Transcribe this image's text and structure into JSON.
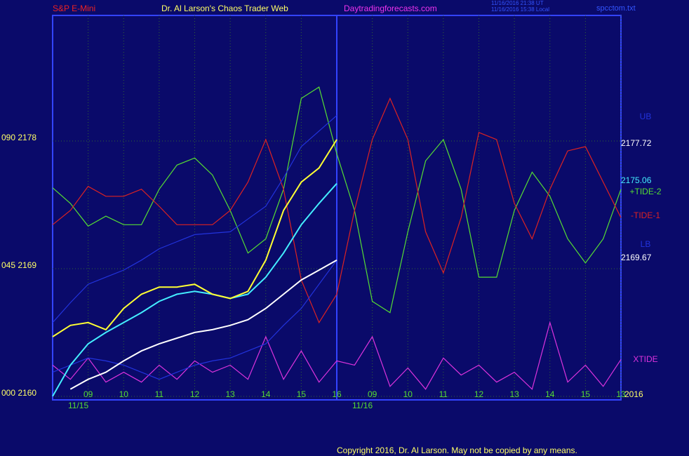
{
  "chart_data": {
    "type": "line",
    "header": {
      "left": "S&P E-Mini",
      "center": "Dr. Al Larson's Chaos Trader Web",
      "site": "Daytradingforecasts.com",
      "time_ut": "11/16/2016 21:38 UT",
      "time_local": "11/16/2016 15:38 Local",
      "file": "spcctom.txt"
    },
    "copyright": "Copyright 2016, Dr. Al Larson. May not be copied by any means.",
    "dates": [
      "11/15",
      "11/16"
    ],
    "right_labels": {
      "ub_value": "2177.72",
      "mid_value": "2175.06",
      "lb_value": "2169.67",
      "year": "2016"
    },
    "x": [
      0,
      0.5,
      1,
      1.5,
      2,
      2.5,
      3,
      3.5,
      4,
      4.5,
      5,
      5.5,
      6,
      6.5,
      7,
      7.5,
      8,
      8.5,
      9,
      9.5,
      10,
      10.5,
      11,
      11.5,
      12,
      12.5,
      13,
      13.5,
      14,
      14.5,
      15,
      15.5,
      16
    ],
    "xlim": [
      0,
      16
    ],
    "xticks": [
      {
        "value": 1,
        "label": "09"
      },
      {
        "value": 2,
        "label": "10"
      },
      {
        "value": 3,
        "label": "11"
      },
      {
        "value": 4,
        "label": "12"
      },
      {
        "value": 5,
        "label": "13"
      },
      {
        "value": 6,
        "label": "14"
      },
      {
        "value": 7,
        "label": "15"
      },
      {
        "value": 8,
        "label": "16"
      },
      {
        "value": 9,
        "label": "09"
      },
      {
        "value": 10,
        "label": "10"
      },
      {
        "value": 11,
        "label": "11"
      },
      {
        "value": 12,
        "label": "12"
      },
      {
        "value": 13,
        "label": "13"
      },
      {
        "value": 14,
        "label": "14"
      },
      {
        "value": 15,
        "label": "15"
      },
      {
        "value": 16,
        "label": "13"
      }
    ],
    "ylim": [
      2159.75,
      2186.85
    ],
    "yticks": [
      {
        "value": 2160,
        "label": "000  2160"
      },
      {
        "value": 2169,
        "label": "045  2169"
      },
      {
        "value": 2178,
        "label": "090  2178"
      }
    ],
    "now_x": 8,
    "grid": true,
    "series": [
      {
        "name": "+TIDE-2",
        "color": "#55dd33",
        "values": [
          2174.7,
          2173.6,
          2172.0,
          2172.7,
          2172.1,
          2172.1,
          2174.6,
          2176.3,
          2176.8,
          2175.6,
          2173.1,
          2170.1,
          2171.1,
          2174.6,
          2181.0,
          2181.8,
          2177.1,
          2173.1,
          2166.7,
          2165.9,
          2171.6,
          2176.6,
          2178.1,
          2174.6,
          2168.4,
          2168.4,
          2173.1,
          2175.8,
          2174.1,
          2171.1,
          2169.4,
          2171.1,
          2174.6
        ]
      },
      {
        "name": "-TIDE-1",
        "color": "#dd2222",
        "values": [
          2172.1,
          2173.1,
          2174.8,
          2174.1,
          2174.1,
          2174.6,
          2173.4,
          2172.1,
          2172.1,
          2172.1,
          2173.1,
          2175.1,
          2178.1,
          2174.6,
          2168.2,
          2165.2,
          2167.2,
          2173.1,
          2178.1,
          2181.0,
          2178.1,
          2171.6,
          2168.7,
          2172.6,
          2178.6,
          2178.1,
          2173.6,
          2171.1,
          2174.6,
          2177.3,
          2177.6,
          2175.1,
          2172.6
        ]
      },
      {
        "name": "XTIDE",
        "color": "#dd33dd",
        "values": [
          2162.2,
          2161.2,
          2162.7,
          2161.0,
          2161.7,
          2161.0,
          2162.2,
          2161.2,
          2162.5,
          2161.7,
          2162.2,
          2161.2,
          2164.2,
          2161.2,
          2163.2,
          2161.0,
          2162.5,
          2162.2,
          2164.2,
          2160.7,
          2162.0,
          2160.5,
          2162.7,
          2161.5,
          2162.2,
          2161.0,
          2161.7,
          2160.5,
          2165.2,
          2161.0,
          2162.2,
          2160.7,
          2162.6
        ]
      },
      {
        "name": "UB",
        "color": "#2233dd",
        "values": [
          2165.2,
          2166.6,
          2167.9,
          2168.4,
          2168.9,
          2169.6,
          2170.4,
          2170.9,
          2171.4,
          2171.5,
          2171.6,
          2172.5,
          2173.4,
          2175.4,
          2177.6,
          2178.7,
          2179.8,
          null,
          null,
          null,
          null,
          null,
          null,
          null,
          null,
          null,
          null,
          null,
          null,
          null,
          null,
          null,
          null
        ]
      },
      {
        "name": "LB",
        "color": "#2233dd",
        "values": [
          2161.7,
          2162.2,
          2162.7,
          2162.5,
          2162.2,
          2161.7,
          2161.2,
          2161.7,
          2162.2,
          2162.5,
          2162.7,
          2163.2,
          2163.7,
          2165.0,
          2166.2,
          2167.9,
          2169.6,
          null,
          null,
          null,
          null,
          null,
          null,
          null,
          null,
          null,
          null,
          null,
          null,
          null,
          null,
          null,
          null
        ]
      },
      {
        "color": "#44eeff",
        "values": [
          2160.0,
          2162.2,
          2163.7,
          2164.5,
          2165.2,
          2165.9,
          2166.7,
          2167.2,
          2167.4,
          2167.2,
          2166.9,
          2167.2,
          2168.4,
          2170.1,
          2172.1,
          2173.6,
          2175.0,
          null,
          null,
          null,
          null,
          null,
          null,
          null,
          null,
          null,
          null,
          null,
          null,
          null,
          null,
          null,
          null
        ]
      },
      {
        "color": "#ffffff",
        "values": [
          null,
          2160.5,
          2161.2,
          2161.7,
          2162.5,
          2163.2,
          2163.7,
          2164.1,
          2164.5,
          2164.7,
          2165.0,
          2165.4,
          2166.2,
          2167.2,
          2168.2,
          2168.9,
          2169.6,
          null,
          null,
          null,
          null,
          null,
          null,
          null,
          null,
          null,
          null,
          null,
          null,
          null,
          null,
          null,
          null
        ]
      },
      {
        "color": "#ffff33",
        "values": [
          2164.2,
          2165.0,
          2165.2,
          2164.7,
          2166.2,
          2167.2,
          2167.7,
          2167.7,
          2167.9,
          2167.2,
          2166.9,
          2167.4,
          2169.6,
          2173.1,
          2175.1,
          2176.1,
          2178.1,
          null,
          null,
          null,
          null,
          null,
          null,
          null,
          null,
          null,
          null,
          null,
          null,
          null,
          null,
          null,
          null
        ]
      }
    ]
  }
}
